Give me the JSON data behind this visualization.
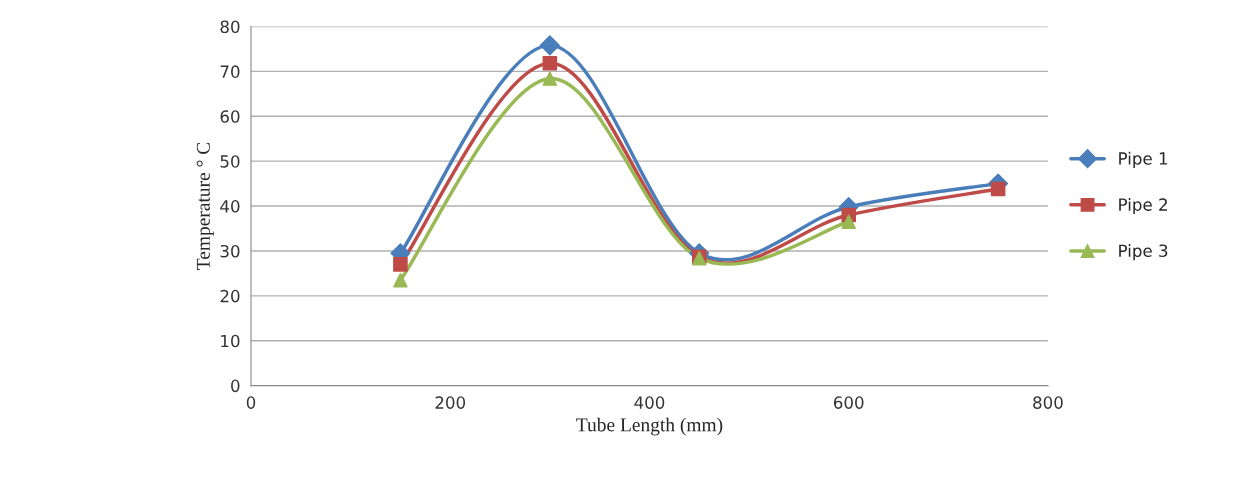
{
  "chart_data": {
    "type": "line",
    "xlabel": "Tube Length (mm)",
    "ylabel": "Temperature ° C",
    "x": [
      150,
      300,
      450,
      600,
      750
    ],
    "series": [
      {
        "name": "Pipe 1",
        "color": "#4a7ebb",
        "marker": "diamond",
        "values": [
          29.5,
          75.8,
          29.5,
          39.8,
          45
        ]
      },
      {
        "name": "Pipe 2",
        "color": "#be4b48",
        "marker": "square",
        "values": [
          27,
          71.8,
          28.7,
          38,
          43.8
        ]
      },
      {
        "name": "Pipe 3",
        "color": "#98b954",
        "marker": "triangle",
        "values": [
          23.5,
          68.4,
          28.4,
          36.5,
          null
        ]
      }
    ],
    "xlim": [
      0,
      800
    ],
    "xticks": [
      0,
      200,
      400,
      600,
      800
    ],
    "ylim": [
      0,
      80
    ],
    "yticks": [
      0,
      10,
      20,
      30,
      40,
      50,
      60,
      70,
      80
    ],
    "grid": "y",
    "legend": "right",
    "line_style": "solid"
  }
}
